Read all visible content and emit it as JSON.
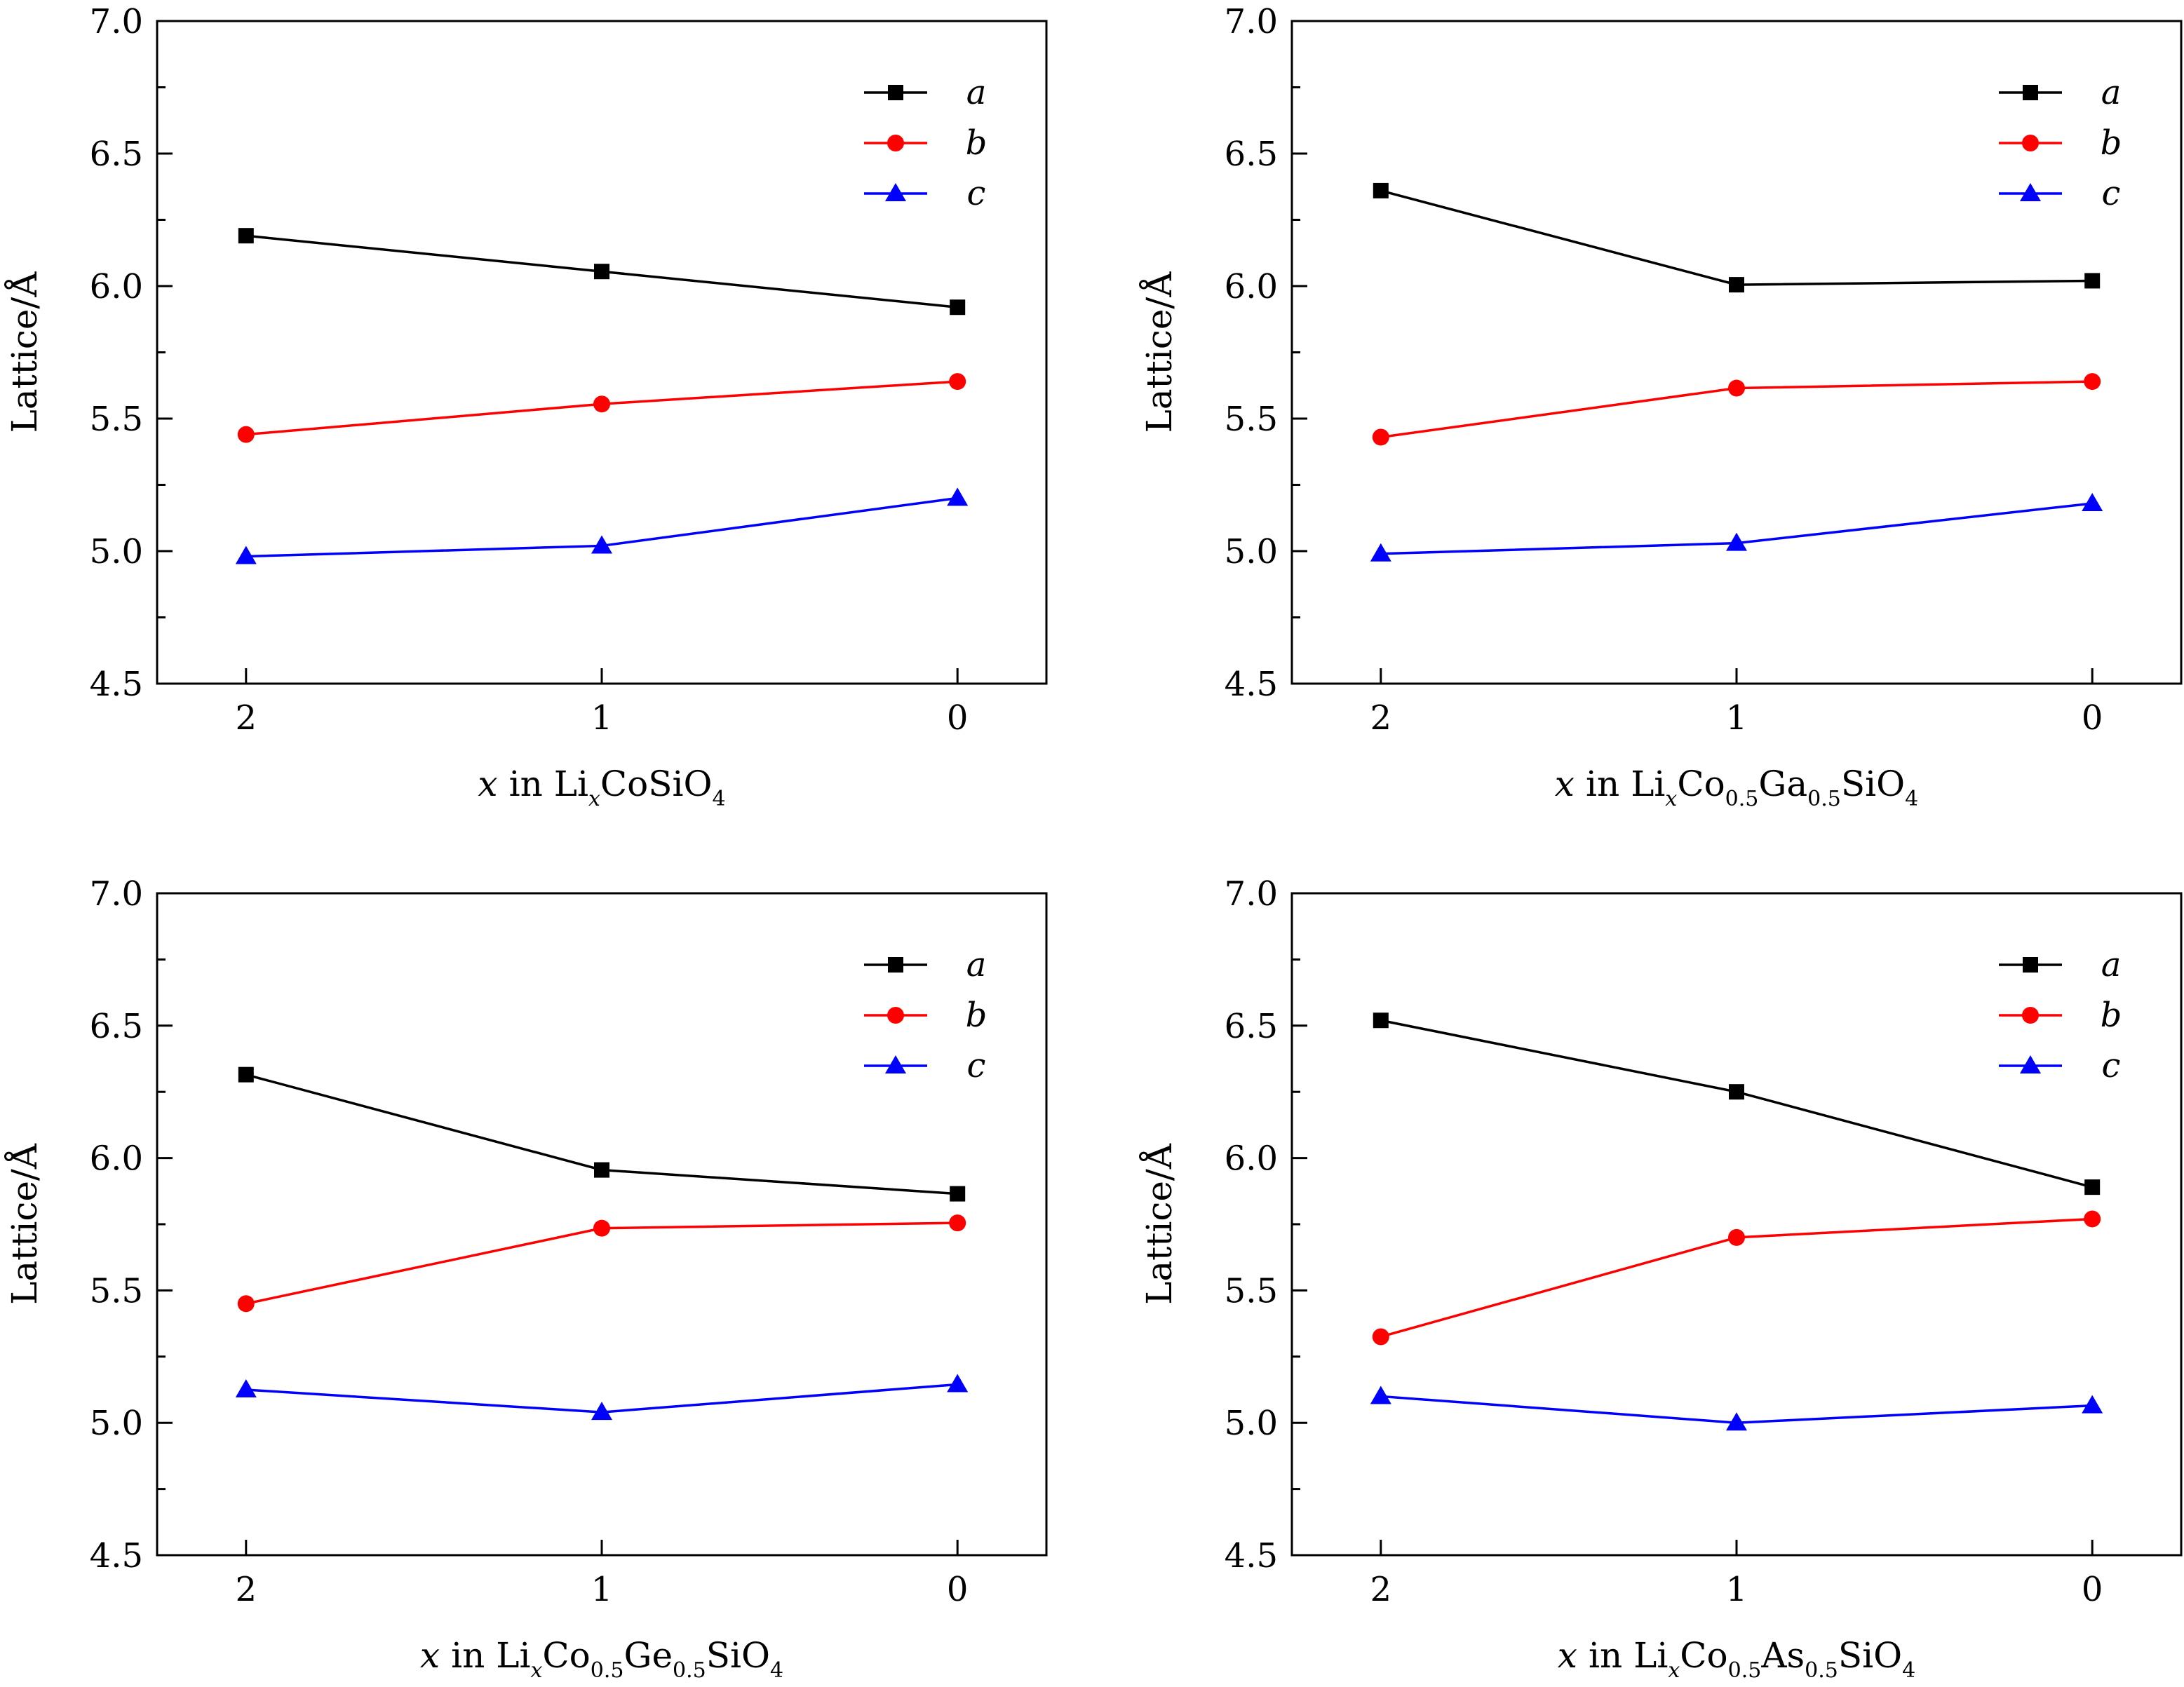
{
  "chart_data": [
    {
      "type": "line",
      "title": "",
      "ylabel": "Lattice/Å",
      "xlabel": {
        "var": "x",
        "in_word": "in",
        "formula": [
          [
            "Li",
            ""
          ],
          [
            "x",
            "sub-italic"
          ],
          [
            "CoSiO",
            ""
          ],
          [
            "4",
            "sub"
          ]
        ]
      },
      "categories": [
        "2",
        "1",
        "0"
      ],
      "y_ticks": [
        "4.5",
        "5.0",
        "5.5",
        "6.0",
        "6.5",
        "7.0"
      ],
      "ylim": [
        4.5,
        7.0
      ],
      "series": [
        {
          "name": "a",
          "values": [
            6.19,
            6.055,
            5.92
          ],
          "color": "#000000",
          "marker": "square"
        },
        {
          "name": "b",
          "values": [
            5.44,
            5.555,
            5.64
          ],
          "color": "#ff0000",
          "marker": "circle"
        },
        {
          "name": "c",
          "values": [
            4.98,
            5.02,
            5.2
          ],
          "color": "#0000ff",
          "marker": "triangle"
        }
      ]
    },
    {
      "type": "line",
      "title": "",
      "ylabel": "Lattice/Å",
      "xlabel": {
        "var": "x",
        "in_word": "in",
        "formula": [
          [
            "Li",
            ""
          ],
          [
            "x",
            "sub-italic"
          ],
          [
            "Co",
            ""
          ],
          [
            "0.5",
            "sub"
          ],
          [
            "Ga",
            ""
          ],
          [
            "0.5",
            "sub"
          ],
          [
            "SiO",
            ""
          ],
          [
            "4",
            "sub"
          ]
        ]
      },
      "categories": [
        "2",
        "1",
        "0"
      ],
      "y_ticks": [
        "4.5",
        "5.0",
        "5.5",
        "6.0",
        "6.5",
        "7.0"
      ],
      "ylim": [
        4.5,
        7.0
      ],
      "series": [
        {
          "name": "a",
          "values": [
            6.36,
            6.005,
            6.02
          ],
          "color": "#000000",
          "marker": "square"
        },
        {
          "name": "b",
          "values": [
            5.43,
            5.615,
            5.64
          ],
          "color": "#ff0000",
          "marker": "circle"
        },
        {
          "name": "c",
          "values": [
            4.99,
            5.03,
            5.18
          ],
          "color": "#0000ff",
          "marker": "triangle"
        }
      ]
    },
    {
      "type": "line",
      "title": "",
      "ylabel": "Lattice/Å",
      "xlabel": {
        "var": "x",
        "in_word": "in",
        "formula": [
          [
            "Li",
            ""
          ],
          [
            "x",
            "sub-italic"
          ],
          [
            "Co",
            ""
          ],
          [
            "0.5",
            "sub"
          ],
          [
            "Ge",
            ""
          ],
          [
            "0.5",
            "sub"
          ],
          [
            "SiO",
            ""
          ],
          [
            "4",
            "sub"
          ]
        ]
      },
      "categories": [
        "2",
        "1",
        "0"
      ],
      "y_ticks": [
        "4.5",
        "5.0",
        "5.5",
        "6.0",
        "6.5",
        "7.0"
      ],
      "ylim": [
        4.5,
        7.0
      ],
      "series": [
        {
          "name": "a",
          "values": [
            6.315,
            5.955,
            5.865
          ],
          "color": "#000000",
          "marker": "square"
        },
        {
          "name": "b",
          "values": [
            5.45,
            5.735,
            5.755
          ],
          "color": "#ff0000",
          "marker": "circle"
        },
        {
          "name": "c",
          "values": [
            5.125,
            5.04,
            5.145
          ],
          "color": "#0000ff",
          "marker": "triangle"
        }
      ]
    },
    {
      "type": "line",
      "title": "",
      "ylabel": "Lattice/Å",
      "xlabel": {
        "var": "x",
        "in_word": "in",
        "formula": [
          [
            "Li",
            ""
          ],
          [
            "x",
            "sub-italic"
          ],
          [
            "Co",
            ""
          ],
          [
            "0.5",
            "sub"
          ],
          [
            "As",
            ""
          ],
          [
            "0.5",
            "sub"
          ],
          [
            "SiO",
            ""
          ],
          [
            "4",
            "sub"
          ]
        ]
      },
      "categories": [
        "2",
        "1",
        "0"
      ],
      "y_ticks": [
        "4.5",
        "5.0",
        "5.5",
        "6.0",
        "6.5",
        "7.0"
      ],
      "ylim": [
        4.5,
        7.0
      ],
      "series": [
        {
          "name": "a",
          "values": [
            6.52,
            6.25,
            5.89
          ],
          "color": "#000000",
          "marker": "square"
        },
        {
          "name": "b",
          "values": [
            5.325,
            5.7,
            5.77
          ],
          "color": "#ff0000",
          "marker": "circle"
        },
        {
          "name": "c",
          "values": [
            5.1,
            5.0,
            5.065
          ],
          "color": "#0000ff",
          "marker": "triangle"
        }
      ]
    }
  ]
}
